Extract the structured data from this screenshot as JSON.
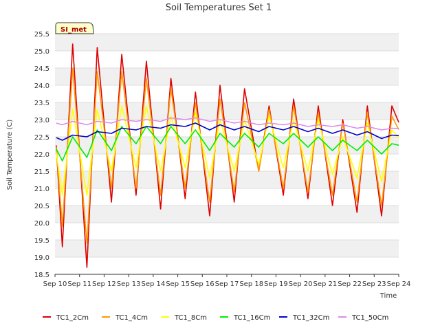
{
  "chart_data": {
    "type": "line",
    "title": "Soil Temperatures Set 1",
    "xlabel": "Time",
    "ylabel": "Soil Temperature (C)",
    "ylim": [
      18.5,
      25.5
    ],
    "y_ticks": [
      "18.5",
      "19.0",
      "19.5",
      "20.0",
      "20.5",
      "21.0",
      "21.5",
      "22.0",
      "22.5",
      "23.0",
      "23.5",
      "24.0",
      "24.5",
      "25.0",
      "25.5"
    ],
    "x_ticks": [
      "Sep 10",
      "Sep 11",
      "Sep 12",
      "Sep 13",
      "Sep 14",
      "Sep 15",
      "Sep 16",
      "Sep 17",
      "Sep 18",
      "Sep 19",
      "Sep 20",
      "Sep 21",
      "Sep 22",
      "Sep 23",
      "Sep 24"
    ],
    "grid": "horizontal bands",
    "legend_position": "bottom",
    "annotation": "SI_met",
    "x_unit": "day of September (10 = Sep 10 00:00)",
    "series": [
      {
        "name": "TC1_2Cm",
        "color": "#dd0000",
        "mins": [
          19.3,
          18.7,
          20.6,
          20.8,
          20.4,
          20.7,
          20.2,
          20.6,
          21.5,
          20.8,
          20.7,
          20.5,
          20.3,
          20.2
        ],
        "maxs": [
          25.2,
          25.1,
          24.9,
          24.7,
          24.2,
          23.8,
          24.0,
          23.9,
          23.4,
          23.6,
          23.4,
          23.0,
          23.4,
          23.4
        ]
      },
      {
        "name": "TC1_4Cm",
        "color": "#ff9900",
        "mins": [
          19.9,
          19.4,
          21.0,
          21.0,
          20.8,
          21.0,
          20.6,
          20.9,
          21.5,
          21.0,
          20.9,
          20.8,
          20.6,
          20.5
        ],
        "maxs": [
          24.5,
          24.4,
          24.4,
          24.2,
          23.9,
          23.5,
          23.6,
          23.5,
          23.3,
          23.4,
          23.2,
          22.9,
          23.2,
          23.1
        ]
      },
      {
        "name": "TC1_8Cm",
        "color": "#ffff00",
        "mins": [
          20.8,
          20.8,
          21.5,
          21.6,
          21.5,
          21.6,
          21.3,
          21.5,
          21.7,
          21.6,
          21.5,
          21.4,
          21.3,
          21.2
        ],
        "maxs": [
          23.3,
          23.3,
          23.4,
          23.4,
          23.1,
          23.2,
          23.0,
          23.0,
          23.1,
          23.0,
          23.0,
          22.5,
          22.9,
          22.7
        ]
      },
      {
        "name": "TC1_16Cm",
        "color": "#00ee00",
        "mins": [
          21.8,
          21.9,
          22.1,
          22.3,
          22.3,
          22.3,
          22.1,
          22.2,
          22.2,
          22.3,
          22.2,
          22.1,
          22.1,
          22.0
        ],
        "maxs": [
          22.5,
          22.7,
          22.8,
          22.8,
          22.8,
          22.7,
          22.6,
          22.6,
          22.6,
          22.6,
          22.5,
          22.4,
          22.4,
          22.3
        ]
      },
      {
        "name": "TC1_32Cm",
        "color": "#0000cc",
        "mins": [
          22.4,
          22.5,
          22.6,
          22.7,
          22.75,
          22.8,
          22.7,
          22.7,
          22.65,
          22.7,
          22.65,
          22.6,
          22.55,
          22.45
        ],
        "maxs": [
          22.55,
          22.65,
          22.75,
          22.8,
          22.85,
          22.9,
          22.85,
          22.8,
          22.8,
          22.8,
          22.75,
          22.7,
          22.65,
          22.55
        ]
      },
      {
        "name": "TC1_50Cm",
        "color": "#dd88ee",
        "mins": [
          22.85,
          22.85,
          22.9,
          22.95,
          22.95,
          23.0,
          22.95,
          22.9,
          22.85,
          22.85,
          22.8,
          22.8,
          22.75,
          22.7
        ],
        "maxs": [
          22.95,
          22.95,
          23.0,
          23.0,
          23.05,
          23.05,
          23.0,
          22.95,
          22.9,
          22.9,
          22.85,
          22.85,
          22.8,
          22.75
        ]
      }
    ]
  }
}
